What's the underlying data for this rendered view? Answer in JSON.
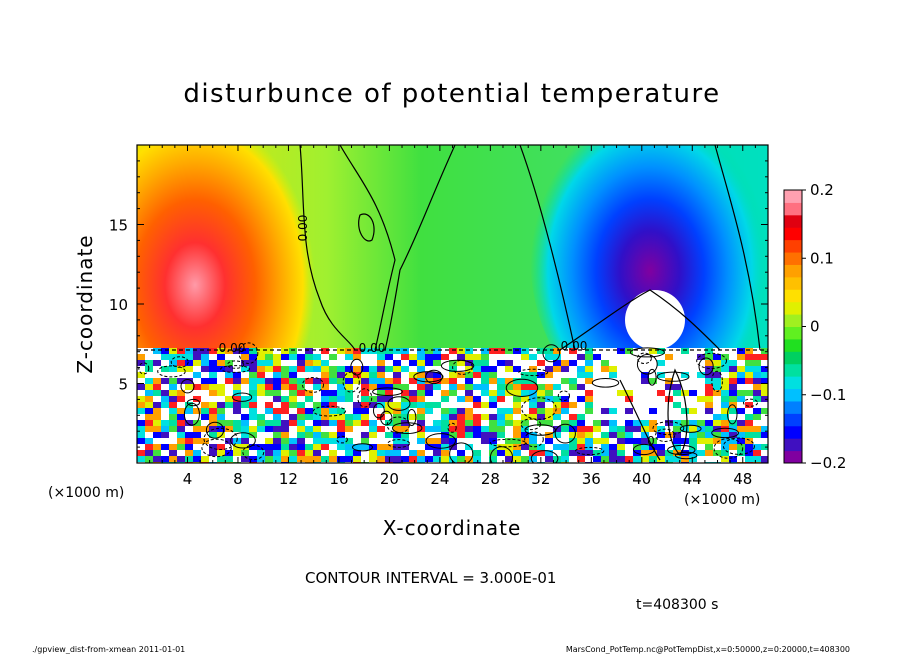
{
  "chart_data": {
    "type": "heatmap",
    "title": "disturbunce of potential temperature",
    "xlabel": "X-coordinate",
    "ylabel": "Z-coordinate",
    "x_unit_left": "(×1000 m)",
    "x_unit_right": "(×1000 m)",
    "xlim": [
      0,
      50
    ],
    "ylim": [
      0,
      20
    ],
    "x_ticks": [
      4,
      8,
      12,
      16,
      20,
      24,
      28,
      32,
      36,
      40,
      44,
      48
    ],
    "y_ticks": [
      5,
      10,
      15
    ],
    "colorbar": {
      "range": [
        -0.2,
        0.2
      ],
      "ticks": [
        {
          "value": 0.2,
          "label": "0.2"
        },
        {
          "value": 0.1,
          "label": "0.1"
        },
        {
          "value": 0,
          "label": "0"
        },
        {
          "value": -0.1,
          "label": "−0.1"
        },
        {
          "value": -0.2,
          "label": "−0.2"
        }
      ],
      "colors": [
        "#8000a0",
        "#4010c0",
        "#0000ff",
        "#0040ff",
        "#0080ff",
        "#00c0ff",
        "#00e0e0",
        "#00e0a0",
        "#00d060",
        "#20e020",
        "#60f020",
        "#a0f020",
        "#e0f000",
        "#ffe000",
        "#ffc000",
        "#ffa000",
        "#ff7000",
        "#ff4000",
        "#ff0000",
        "#e00010",
        "#ff7080",
        "#ffa0b0"
      ]
    },
    "contour_labels": [
      "0.00",
      "0.00",
      "0.00",
      "0.00",
      "0"
    ],
    "contour_interval_text": "CONTOUR INTERVAL = 3.000E-01",
    "time_text": "t=408300 s"
  },
  "footer": {
    "left": "./gpview_dist-from-xmean  2011-01-01",
    "right": "MarsCond_PotTemp.nc@PotTempDist,x=0:50000,z=0:20000,t=408300"
  }
}
